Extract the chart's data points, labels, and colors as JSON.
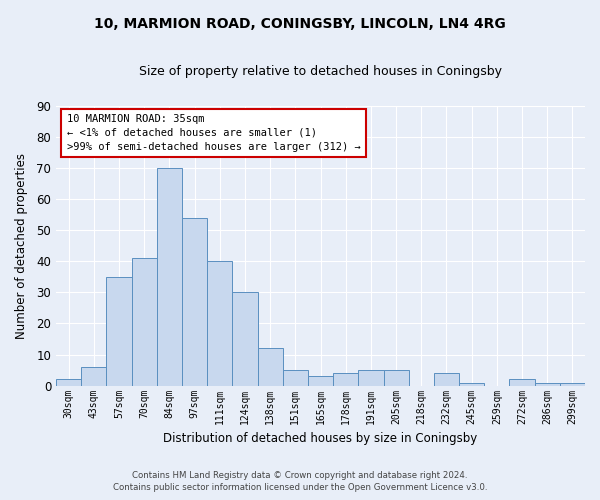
{
  "title": "10, MARMION ROAD, CONINGSBY, LINCOLN, LN4 4RG",
  "subtitle": "Size of property relative to detached houses in Coningsby",
  "xlabel": "Distribution of detached houses by size in Coningsby",
  "ylabel": "Number of detached properties",
  "bin_labels": [
    "30sqm",
    "43sqm",
    "57sqm",
    "70sqm",
    "84sqm",
    "97sqm",
    "111sqm",
    "124sqm",
    "138sqm",
    "151sqm",
    "165sqm",
    "178sqm",
    "191sqm",
    "205sqm",
    "218sqm",
    "232sqm",
    "245sqm",
    "259sqm",
    "272sqm",
    "286sqm",
    "299sqm"
  ],
  "bar_values": [
    2,
    6,
    35,
    41,
    70,
    54,
    40,
    30,
    12,
    5,
    3,
    4,
    5,
    5,
    0,
    4,
    1,
    0,
    2,
    1,
    1
  ],
  "bar_color": "#c8d8ee",
  "bar_edge_color": "#5a8fc0",
  "ylim": [
    0,
    90
  ],
  "yticks": [
    0,
    10,
    20,
    30,
    40,
    50,
    60,
    70,
    80,
    90
  ],
  "annotation_box_text": "10 MARMION ROAD: 35sqm\n← <1% of detached houses are smaller (1)\n>99% of semi-detached houses are larger (312) →",
  "annotation_box_color": "#ffffff",
  "annotation_box_edge_color": "#cc0000",
  "footer_line1": "Contains HM Land Registry data © Crown copyright and database right 2024.",
  "footer_line2": "Contains public sector information licensed under the Open Government Licence v3.0.",
  "background_color": "#e8eef8",
  "grid_color": "#ffffff",
  "title_fontsize": 10,
  "subtitle_fontsize": 9
}
